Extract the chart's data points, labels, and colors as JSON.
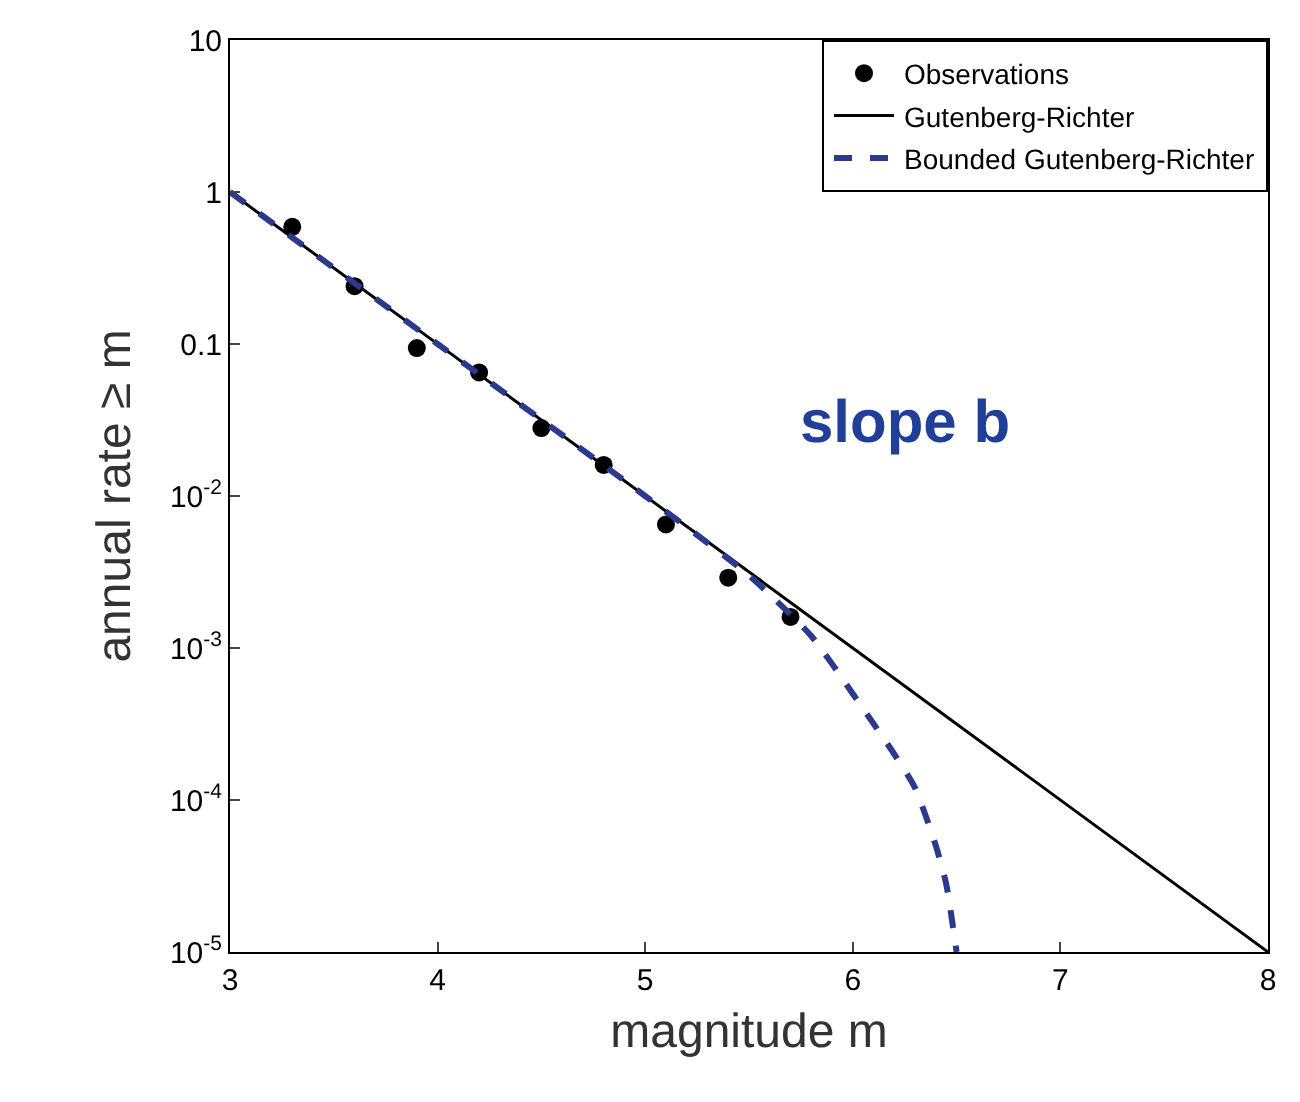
{
  "chart_data": {
    "type": "line",
    "xlabel": "magnitude m",
    "ylabel": "annual rate ≥ m",
    "log": "y",
    "legend": "top right",
    "xlim": [
      3,
      8
    ],
    "xticks": [
      3,
      4,
      5,
      6,
      7,
      8
    ],
    "ylim": [
      1e-05,
      10
    ],
    "yticks": [
      {
        "value": 10,
        "label": "10"
      },
      {
        "value": 1,
        "label": "1"
      },
      {
        "value": 0.1,
        "label": "0.1"
      },
      {
        "value": 0.01,
        "label": "10$^{-2}$"
      },
      {
        "value": 0.001,
        "label": "10$^{-3}$"
      },
      {
        "value": 0.0001,
        "label": "10$^{-4}$"
      },
      {
        "value": 1e-05,
        "label": "10$^{-5}$"
      }
    ],
    "annotations": [
      "slope b"
    ],
    "series": [
      {
        "name": "Observations",
        "type": "scatter",
        "marker": "circle",
        "color": "#000000",
        "x": [
          3.3,
          3.6,
          3.9,
          4.2,
          4.5,
          4.8,
          5.1,
          5.4,
          5.7
        ],
        "values": [
          0.59,
          0.24,
          0.094,
          0.065,
          0.028,
          0.016,
          0.0065,
          0.0029,
          0.0016
        ]
      },
      {
        "name": "Gutenberg-Richter",
        "line_style": "solid",
        "color": "#000000",
        "x": [
          3,
          8
        ],
        "values": [
          1,
          1e-05
        ]
      },
      {
        "name": "Bounded Gutenberg-Richter",
        "line_style": "dashed",
        "color": "#2b3a8c",
        "x": [
          3,
          4,
          5,
          5.5,
          5.8,
          6,
          6.2,
          6.3,
          6.4,
          6.45,
          6.5
        ],
        "values": [
          1,
          0.1,
          0.01,
          0.003,
          0.0012,
          0.0005,
          0.0002,
          0.00012,
          5e-05,
          2.8e-05,
          1e-05
        ]
      }
    ]
  }
}
